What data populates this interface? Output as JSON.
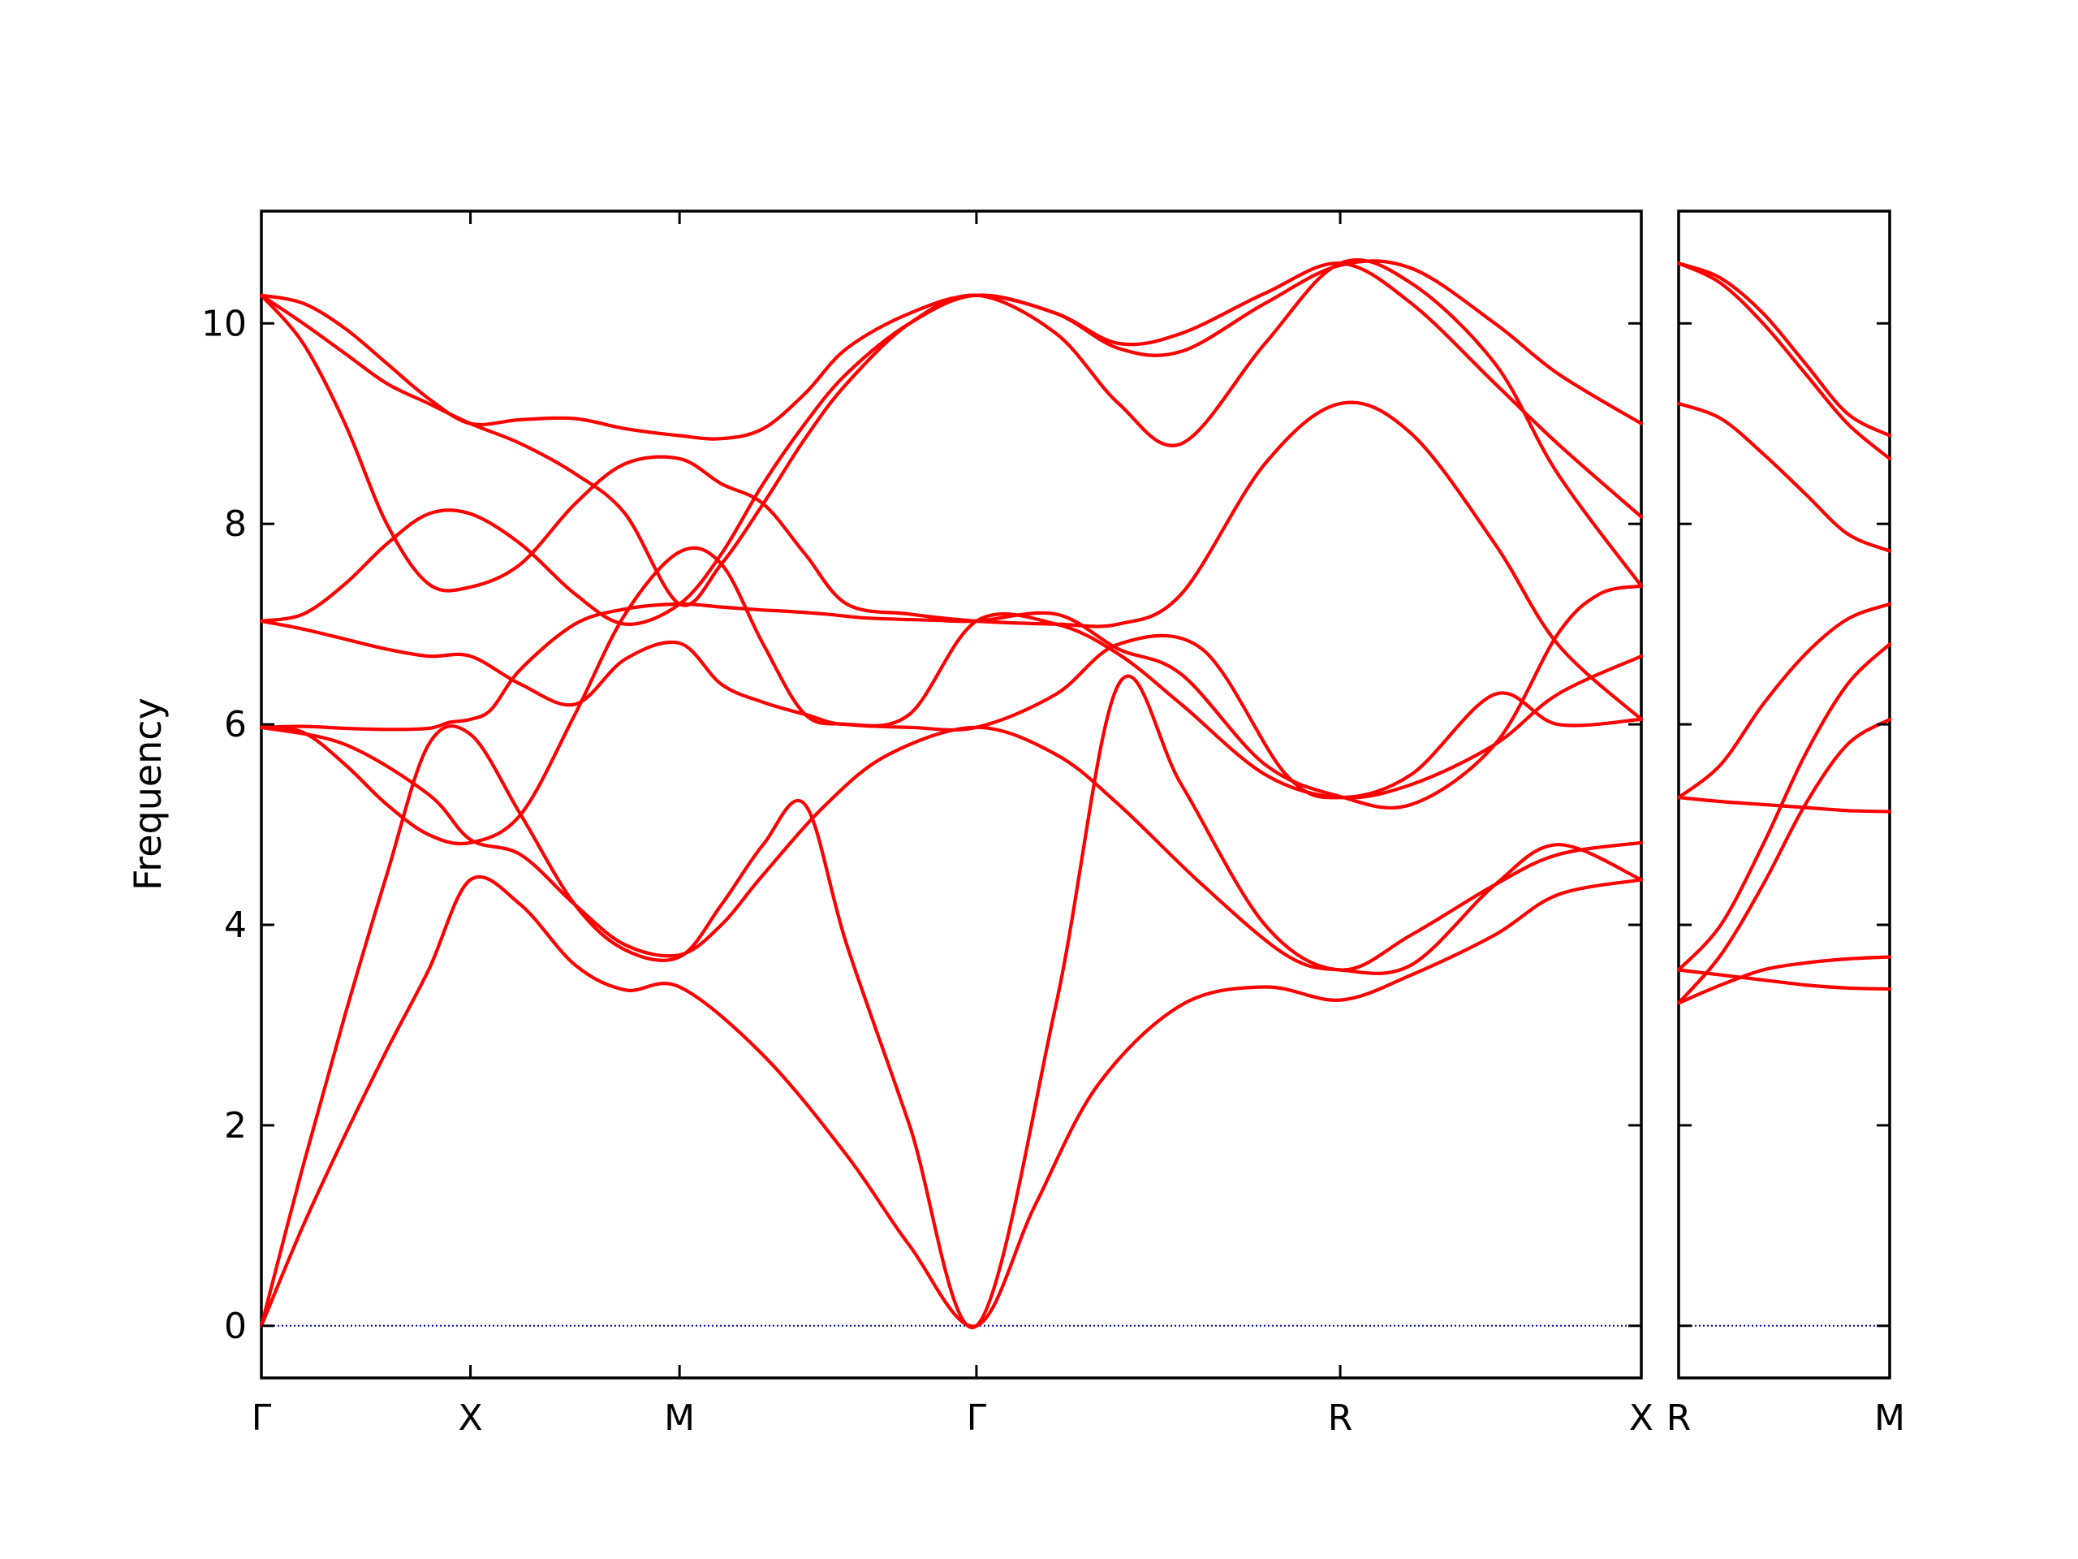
{
  "chart_data": {
    "type": "line",
    "ylabel": "Frequency",
    "ylim": [
      -0.52,
      11.12
    ],
    "yticks": [
      0,
      2,
      4,
      6,
      8,
      10
    ],
    "grid": false,
    "zero_line_color": "#0000aa",
    "band_color": "#ff0000",
    "panels": [
      {
        "name": "main",
        "xlim": [
          0,
          3.3
        ],
        "ticks": [
          {
            "x": 0.0,
            "label": "Γ"
          },
          {
            "x": 0.5,
            "label": "X"
          },
          {
            "x": 1.0,
            "label": "M"
          },
          {
            "x": 1.71,
            "label": "Γ"
          },
          {
            "x": 2.58,
            "label": "R"
          },
          {
            "x": 3.3,
            "label": "X"
          }
        ],
        "bands": [
          {
            "x": [
              0,
              0.1,
              0.2,
              0.3,
              0.4,
              0.5,
              0.62,
              0.75,
              0.87,
              1.0,
              1.2,
              1.4,
              1.55,
              1.71,
              1.85,
              2.0,
              2.2,
              2.4,
              2.58,
              2.75,
              2.95,
              3.1,
              3.3
            ],
            "y": [
              0,
              1.0,
              1.9,
              2.75,
              3.55,
              4.45,
              4.2,
              3.6,
              3.35,
              3.38,
              2.7,
              1.7,
              0.8,
              0.0,
              1.2,
              2.4,
              3.2,
              3.38,
              3.25,
              3.5,
              3.9,
              4.3,
              4.45
            ]
          },
          {
            "x": [
              0,
              0.1,
              0.2,
              0.3,
              0.4,
              0.5,
              0.62,
              0.75,
              0.87,
              1.0,
              1.1,
              1.2,
              1.3,
              1.4,
              1.55,
              1.71,
              1.9,
              2.05,
              2.2,
              2.4,
              2.58,
              2.75,
              2.95,
              3.1,
              3.3
            ],
            "y": [
              0,
              1.6,
              3.1,
              4.5,
              5.8,
              5.9,
              5.1,
              4.2,
              3.75,
              3.68,
              4.2,
              4.8,
              5.2,
              3.8,
              2.0,
              0.0,
              3.2,
              6.4,
              5.4,
              4.0,
              3.55,
              3.9,
              4.4,
              4.7,
              4.82
            ]
          },
          {
            "x": [
              0,
              0.2,
              0.4,
              0.5,
              0.62,
              0.75,
              0.87,
              1.0,
              1.1,
              1.2,
              1.35,
              1.5,
              1.71,
              1.9,
              2.05,
              2.25,
              2.45,
              2.58,
              2.75,
              2.95,
              3.1,
              3.3
            ],
            "y": [
              5.97,
              5.8,
              5.3,
              4.85,
              4.7,
              4.2,
              3.8,
              3.7,
              4.0,
              4.5,
              5.2,
              5.7,
              5.97,
              5.7,
              5.2,
              4.4,
              3.7,
              3.55,
              3.6,
              4.4,
              4.8,
              4.45
            ]
          },
          {
            "x": [
              0,
              0.1,
              0.2,
              0.3,
              0.4,
              0.45,
              0.5,
              0.55,
              0.62,
              0.75,
              0.87,
              1.0,
              1.1,
              1.2,
              1.25,
              1.35,
              1.45,
              1.6,
              1.71,
              1.9,
              2.05,
              2.2,
              2.4,
              2.58,
              2.75,
              2.95,
              3.1,
              3.2,
              3.3
            ],
            "y": [
              5.97,
              5.98,
              5.96,
              5.95,
              5.96,
              6.02,
              6.05,
              6.15,
              6.55,
              7.0,
              7.15,
              7.2,
              7.17,
              7.14,
              7.13,
              7.1,
              7.06,
              7.04,
              7.03,
              7.1,
              6.75,
              6.5,
              5.6,
              5.28,
              5.2,
              5.8,
              6.9,
              7.3,
              7.38
            ]
          },
          {
            "x": [
              0,
              0.1,
              0.2,
              0.3,
              0.4,
              0.5,
              0.62,
              0.75,
              0.87,
              1.0,
              1.1,
              1.2,
              1.3,
              1.4,
              1.55,
              1.71,
              1.9,
              2.05,
              2.25,
              2.45,
              2.58,
              2.75,
              2.95,
              3.1,
              3.3
            ],
            "y": [
              5.97,
              5.92,
              5.6,
              5.2,
              4.9,
              4.82,
              5.1,
              6.1,
              7.1,
              7.72,
              7.6,
              6.8,
              6.1,
              6.0,
              5.97,
              5.97,
              6.3,
              6.8,
              6.75,
              5.5,
              5.27,
              5.5,
              6.3,
              6.0,
              6.05
            ]
          },
          {
            "x": [
              0,
              0.1,
              0.2,
              0.3,
              0.4,
              0.5,
              0.62,
              0.75,
              0.87,
              1.0,
              1.1,
              1.2,
              1.3,
              1.4,
              1.55,
              1.71,
              1.9,
              2.05,
              2.2,
              2.4,
              2.58,
              2.75,
              2.95,
              3.1,
              3.3
            ],
            "y": [
              7.03,
              6.95,
              6.85,
              6.75,
              6.68,
              6.68,
              6.4,
              6.2,
              6.65,
              6.81,
              6.4,
              6.22,
              6.1,
              6.0,
              6.1,
              7.03,
              7.0,
              6.7,
              6.2,
              5.5,
              5.27,
              5.4,
              5.8,
              6.3,
              6.68
            ]
          },
          {
            "x": [
              0,
              0.1,
              0.2,
              0.3,
              0.4,
              0.5,
              0.62,
              0.75,
              0.87,
              1.0,
              1.1,
              1.2,
              1.3,
              1.4,
              1.55,
              1.71,
              1.9,
              2.05,
              2.2,
              2.4,
              2.58,
              2.75,
              2.95,
              3.1,
              3.3
            ],
            "y": [
              7.03,
              7.1,
              7.4,
              7.8,
              8.1,
              8.1,
              7.8,
              7.3,
              7.0,
              7.2,
              7.7,
              8.4,
              9.0,
              9.5,
              10.0,
              10.28,
              10.1,
              9.8,
              9.9,
              10.3,
              10.6,
              10.2,
              9.4,
              8.8,
              8.07
            ]
          },
          {
            "x": [
              0,
              0.1,
              0.2,
              0.3,
              0.4,
              0.5,
              0.62,
              0.75,
              0.87,
              1.0,
              1.1,
              1.2,
              1.3,
              1.4,
              1.55,
              1.71,
              1.9,
              2.05,
              2.2,
              2.4,
              2.58,
              2.75,
              2.95,
              3.1,
              3.3
            ],
            "y": [
              10.28,
              9.8,
              9.0,
              8.0,
              7.4,
              7.37,
              7.6,
              8.2,
              8.6,
              8.65,
              8.4,
              8.2,
              7.7,
              7.2,
              7.1,
              7.03,
              7.0,
              7.0,
              7.3,
              8.6,
              9.2,
              8.9,
              7.8,
              6.8,
              6.05
            ]
          },
          {
            "x": [
              0,
              0.1,
              0.2,
              0.3,
              0.4,
              0.5,
              0.62,
              0.75,
              0.87,
              1.0,
              1.1,
              1.2,
              1.3,
              1.4,
              1.55,
              1.71,
              1.9,
              2.05,
              2.2,
              2.4,
              2.58,
              2.75,
              2.95,
              3.1,
              3.3
            ],
            "y": [
              10.28,
              10.0,
              9.7,
              9.4,
              9.2,
              9.0,
              8.8,
              8.5,
              8.1,
              7.2,
              7.6,
              8.2,
              8.85,
              9.4,
              10.0,
              10.28,
              9.9,
              9.2,
              8.8,
              9.8,
              10.6,
              10.4,
              9.6,
              8.5,
              7.38
            ]
          },
          {
            "x": [
              0,
              0.1,
              0.2,
              0.3,
              0.4,
              0.5,
              0.62,
              0.75,
              0.87,
              1.0,
              1.1,
              1.2,
              1.3,
              1.4,
              1.55,
              1.71,
              1.9,
              2.05,
              2.2,
              2.4,
              2.58,
              2.75,
              2.95,
              3.1,
              3.3
            ],
            "y": [
              10.28,
              10.2,
              9.95,
              9.6,
              9.25,
              9.0,
              9.04,
              9.05,
              8.95,
              8.88,
              8.85,
              8.95,
              9.3,
              9.75,
              10.1,
              10.28,
              10.1,
              9.75,
              9.72,
              10.2,
              10.58,
              10.55,
              10.0,
              9.5,
              9.0
            ]
          }
        ]
      },
      {
        "name": "side",
        "xlim": [
          0,
          0.5
        ],
        "ticks": [
          {
            "x": 0.0,
            "label": "R"
          },
          {
            "x": 0.5,
            "label": "M"
          }
        ],
        "bands": [
          {
            "x": [
              0,
              0.1,
              0.2,
              0.3,
              0.4,
              0.5
            ],
            "y": [
              3.22,
              3.4,
              3.55,
              3.62,
              3.66,
              3.68
            ]
          },
          {
            "x": [
              0,
              0.1,
              0.2,
              0.3,
              0.4,
              0.5
            ],
            "y": [
              3.55,
              3.5,
              3.45,
              3.4,
              3.37,
              3.36
            ]
          },
          {
            "x": [
              0,
              0.1,
              0.2,
              0.3,
              0.4,
              0.5
            ],
            "y": [
              3.22,
              3.7,
              4.4,
              5.2,
              5.8,
              6.05
            ]
          },
          {
            "x": [
              0,
              0.1,
              0.2,
              0.3,
              0.4,
              0.5
            ],
            "y": [
              3.55,
              4.0,
              4.8,
              5.7,
              6.4,
              6.8
            ]
          },
          {
            "x": [
              0,
              0.1,
              0.2,
              0.3,
              0.4,
              0.5
            ],
            "y": [
              5.27,
              5.23,
              5.2,
              5.17,
              5.14,
              5.13
            ]
          },
          {
            "x": [
              0,
              0.1,
              0.2,
              0.3,
              0.4,
              0.5
            ],
            "y": [
              5.27,
              5.6,
              6.2,
              6.7,
              7.05,
              7.2
            ]
          },
          {
            "x": [
              0,
              0.1,
              0.2,
              0.3,
              0.4,
              0.5
            ],
            "y": [
              9.2,
              9.05,
              8.7,
              8.3,
              7.9,
              7.73
            ]
          },
          {
            "x": [
              0,
              0.1,
              0.2,
              0.3,
              0.4,
              0.5
            ],
            "y": [
              10.6,
              10.4,
              10.0,
              9.5,
              9.0,
              8.65
            ]
          },
          {
            "x": [
              0,
              0.1,
              0.2,
              0.3,
              0.4,
              0.5
            ],
            "y": [
              10.6,
              10.45,
              10.1,
              9.6,
              9.1,
              8.88
            ]
          }
        ]
      }
    ]
  }
}
